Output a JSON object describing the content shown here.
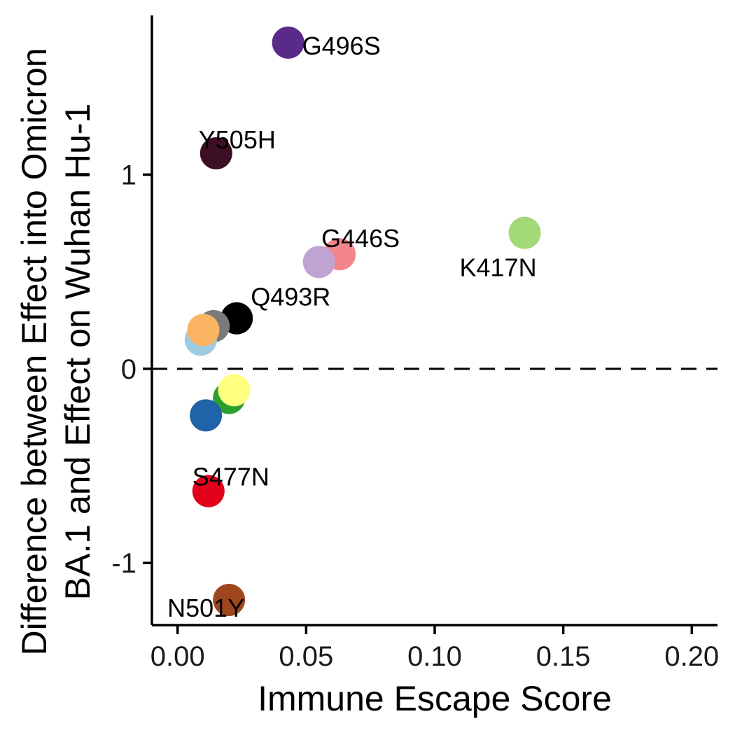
{
  "chart_data": {
    "type": "scatter",
    "xlabel": "Immune Escape Score",
    "ylabel_lines": [
      "Difference between Effect into Omicron",
      "BA.1 and Effect on Wuhan Hu-1"
    ],
    "xlim": [
      -0.01,
      0.21
    ],
    "ylim": [
      -1.32,
      1.82
    ],
    "x_ticks": [
      0.0,
      0.05,
      0.1,
      0.15,
      0.2
    ],
    "x_tick_labels": [
      "0.00",
      "0.05",
      "0.10",
      "0.15",
      "0.20"
    ],
    "y_ticks": [
      -1,
      0,
      1
    ],
    "y_tick_labels": [
      "-1",
      "0",
      "1"
    ],
    "reference_line_y": 0,
    "grid": false,
    "legend": "none",
    "points": [
      {
        "x": 0.043,
        "y": 1.68,
        "color": "#5a2a8a",
        "label": "G496S"
      },
      {
        "x": 0.015,
        "y": 1.11,
        "color": "#3d0f24",
        "label": "Y505H"
      },
      {
        "x": 0.135,
        "y": 0.7,
        "color": "#a3d977",
        "label": "K417N"
      },
      {
        "x": 0.063,
        "y": 0.59,
        "color": "#f4858a",
        "label": "G446S"
      },
      {
        "x": 0.055,
        "y": 0.55,
        "color": "#bfa3d0",
        "label": ""
      },
      {
        "x": 0.023,
        "y": 0.26,
        "color": "#000000",
        "label": "Q493R"
      },
      {
        "x": 0.014,
        "y": 0.22,
        "color": "#7a7a7a",
        "label": ""
      },
      {
        "x": 0.009,
        "y": 0.15,
        "color": "#9ecae1",
        "label": ""
      },
      {
        "x": 0.01,
        "y": 0.2,
        "color": "#fbb562",
        "label": ""
      },
      {
        "x": 0.02,
        "y": -0.15,
        "color": "#2ca02c",
        "label": ""
      },
      {
        "x": 0.022,
        "y": -0.11,
        "color": "#ffff80",
        "label": ""
      },
      {
        "x": 0.011,
        "y": -0.24,
        "color": "#1f63a8",
        "label": ""
      },
      {
        "x": 0.012,
        "y": -0.63,
        "color": "#e3001b",
        "label": "S477N"
      },
      {
        "x": 0.02,
        "y": -1.19,
        "color": "#a0461e",
        "label": "N501Y"
      }
    ]
  }
}
